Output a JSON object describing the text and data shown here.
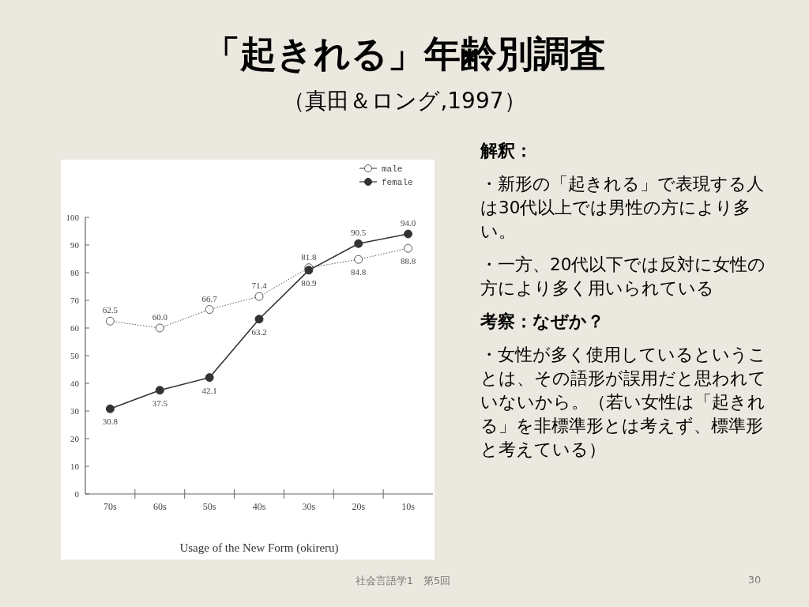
{
  "chart_data": {
    "type": "line",
    "title": "「起きれる」年齢別調査",
    "subtitle": "（真田＆ロング,1997）",
    "xlabel": "Usage of the New Form (okireru)",
    "categories": [
      "70s",
      "60s",
      "50s",
      "40s",
      "30s",
      "20s",
      "10s"
    ],
    "series": [
      {
        "name": "male",
        "color": "#555555",
        "values": [
          62.5,
          60.0,
          66.7,
          71.4,
          81.8,
          84.8,
          88.8
        ],
        "value_labels": [
          "62.5",
          "60.0",
          "66.7",
          "71.4",
          "81.8",
          "84.8",
          "88.8"
        ],
        "line_style": "dotted",
        "marker": "circle"
      },
      {
        "name": "female",
        "color": "#333333",
        "values": [
          30.8,
          37.5,
          42.1,
          63.2,
          80.9,
          90.5,
          94.0
        ],
        "value_labels": [
          "30.8",
          "37.5",
          "42.1",
          "63.2",
          "80.9",
          "90.5",
          "94.0"
        ],
        "line_style": "solid",
        "marker": "circle"
      }
    ],
    "ylim": [
      0,
      100
    ],
    "yticks": [
      0,
      10,
      20,
      30,
      40,
      50,
      60,
      70,
      80,
      90,
      100
    ],
    "legend": "top right",
    "grid": false,
    "annotations": [
      "**解釈：**",
      "・新形の「起きれる」で表現する人は30代以上では男性の方により多い。",
      "・一方、20代以下では反対に女性の方により多く用いられている",
      "**考察：なぜか？**",
      "・女性が多く使用しているということは、その語形が誤用だと思われていないから。（若い女性は「起きれる」を非標準形とは考えず、標準形と考えている）",
      "社会言語学1　第5回",
      "30"
    ]
  }
}
